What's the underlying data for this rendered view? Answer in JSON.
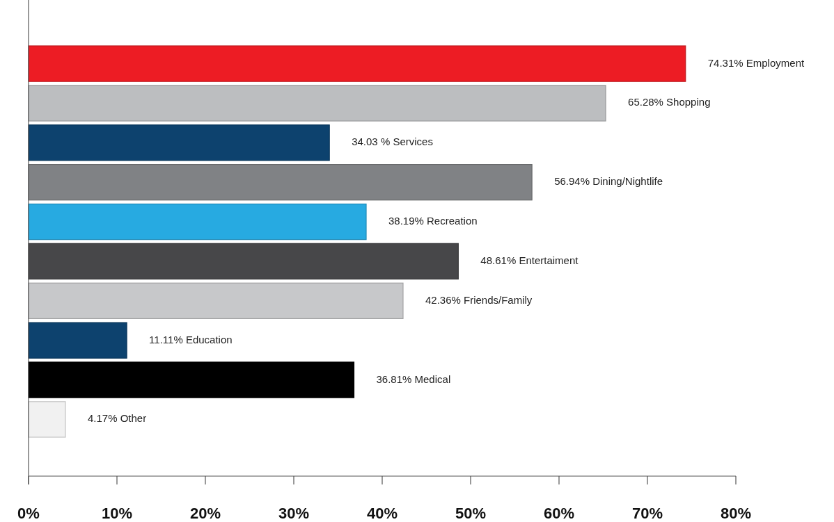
{
  "chart_data": {
    "type": "bar",
    "orientation": "horizontal",
    "categories": [
      "Employment",
      "Shopping",
      "Services",
      "Dining/Nightlife",
      "Recreation",
      "Entertaiment",
      "Friends/Family",
      "Education",
      "Medical",
      "Other"
    ],
    "values": [
      74.31,
      65.28,
      34.03,
      56.94,
      38.19,
      48.61,
      42.36,
      11.11,
      36.81,
      4.17
    ],
    "value_labels": [
      "74.31%",
      "65.28%",
      "34.03 %",
      "56.94%",
      "38.19%",
      "48.61%",
      "42.36%",
      "11.11%",
      "36.81%",
      "4.17%"
    ],
    "colors": [
      "#ed1c24",
      "#bcbec0",
      "#0d426e",
      "#808285",
      "#27aae1",
      "#474749",
      "#c7c8ca",
      "#0d426e",
      "#000000",
      "#f1f1f1"
    ],
    "xlim": [
      0,
      80
    ],
    "xticks": [
      {
        "value": 0,
        "label": "0%"
      },
      {
        "value": 10,
        "label": "10%"
      },
      {
        "value": 20,
        "label": "20%"
      },
      {
        "value": 30,
        "label": "30%"
      },
      {
        "value": 40,
        "label": "40%"
      },
      {
        "value": 50,
        "label": "50%"
      },
      {
        "value": 60,
        "label": "60%"
      },
      {
        "value": 70,
        "label": "70%"
      },
      {
        "value": 80,
        "label": "80%"
      }
    ],
    "tick_labels": "x"
  }
}
